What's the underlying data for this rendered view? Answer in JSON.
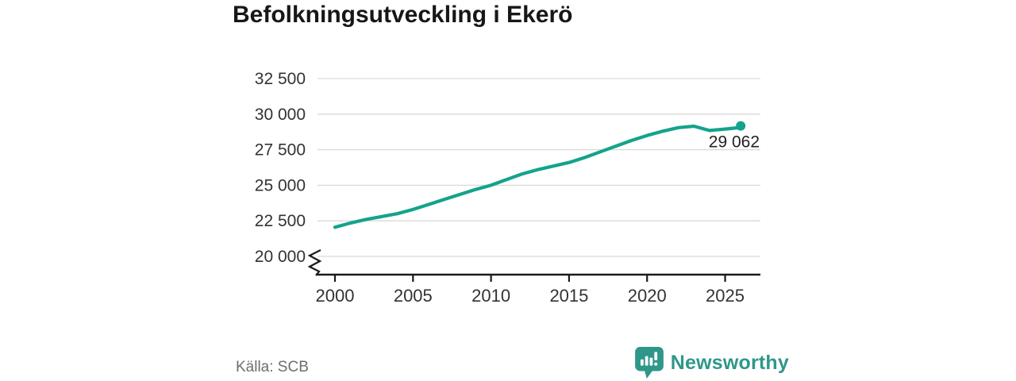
{
  "header": {
    "title": "Befolkningsutveckling i Ekerö"
  },
  "footer": {
    "source": "Källa: SCB",
    "brand": "Newsworthy"
  },
  "colors": {
    "line": "#14a38c",
    "brand": "#2f978a",
    "grid": "#d9d9d9",
    "axis": "#1a1a1a",
    "text": "#333333",
    "annotation": "#222222",
    "muted": "#6e6e6e"
  },
  "chart_data": {
    "type": "line",
    "title": "Befolkningsutveckling i Ekerö",
    "xlabel": "",
    "ylabel": "",
    "x": [
      2000,
      2001,
      2002,
      2003,
      2004,
      2005,
      2006,
      2007,
      2008,
      2009,
      2010,
      2011,
      2012,
      2013,
      2014,
      2015,
      2016,
      2017,
      2018,
      2019,
      2020,
      2021,
      2022,
      2023,
      2024,
      2025,
      2026
    ],
    "values": [
      22050,
      22350,
      22600,
      22800,
      23000,
      23300,
      23650,
      24000,
      24350,
      24700,
      25000,
      25400,
      25800,
      26100,
      26350,
      26600,
      26950,
      27350,
      27750,
      28150,
      28500,
      28800,
      29050,
      29150,
      28850,
      28950,
      29062
    ],
    "end_value": 29062,
    "end_label": "29 062",
    "yticks": [
      20000,
      22500,
      25000,
      27500,
      30000,
      32500
    ],
    "ytick_labels": [
      "20 000",
      "22 500",
      "25 000",
      "27 500",
      "30 000",
      "32 500"
    ],
    "xticks": [
      2000,
      2005,
      2010,
      2015,
      2020,
      2025
    ],
    "xtick_labels": [
      "2000",
      "2005",
      "2010",
      "2015",
      "2020",
      "2025"
    ],
    "ylim": [
      20000,
      32500
    ],
    "axis_break": true,
    "grid": true,
    "legend": false,
    "source": "Källa: SCB"
  }
}
